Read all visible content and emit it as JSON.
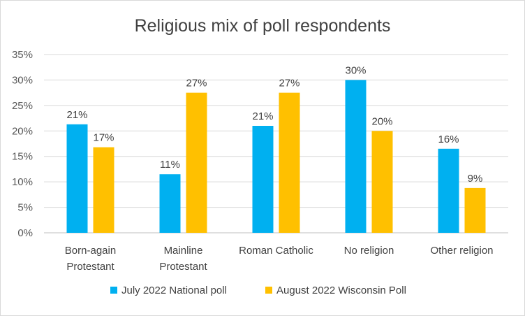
{
  "chart_data": {
    "type": "bar",
    "title": "Religious mix of poll respondents",
    "xlabel": "",
    "ylabel": "",
    "categories": [
      [
        "Born-again",
        "Protestant"
      ],
      [
        "Mainline",
        "Protestant"
      ],
      [
        "Roman Catholic"
      ],
      [
        "No religion"
      ],
      [
        "Other religion"
      ]
    ],
    "series": [
      {
        "name": "July 2022 National poll",
        "color": "#00b0f0",
        "values": [
          21.3,
          11.5,
          21.0,
          30.0,
          16.5
        ],
        "labels": [
          "21%",
          "11%",
          "21%",
          "30%",
          "16%"
        ]
      },
      {
        "name": "August 2022 Wisconsin Poll",
        "color": "#ffc000",
        "values": [
          16.8,
          27.5,
          27.5,
          20.0,
          8.8
        ],
        "labels": [
          "17%",
          "27%",
          "27%",
          "20%",
          "9%"
        ]
      }
    ],
    "ylim": [
      0,
      35
    ],
    "yticks": [
      "0%",
      "5%",
      "10%",
      "15%",
      "20%",
      "25%",
      "30%",
      "35%"
    ],
    "grid": true,
    "legend_position": "bottom"
  }
}
